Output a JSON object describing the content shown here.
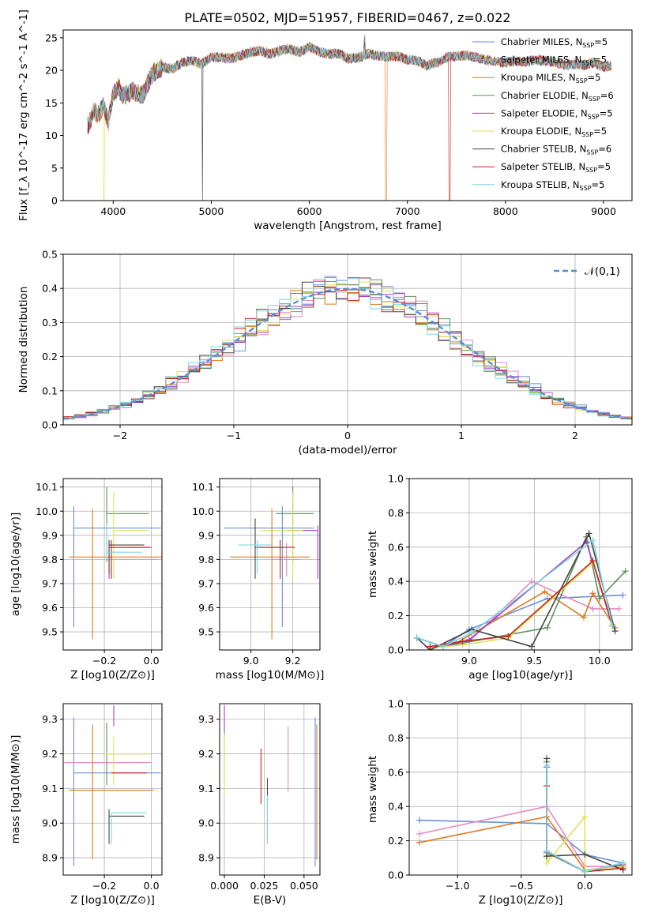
{
  "figure": {
    "title": "PLATE=0502, MJD=51957, FIBERID=0467, z=0.022"
  },
  "models": [
    {
      "name": "Chabrier MILES",
      "nssp": "5",
      "color": "#6b8fd6"
    },
    {
      "name": "Salpeter MILES",
      "nssp": "5",
      "color": "#e58bc0"
    },
    {
      "name": "Kroupa MILES",
      "nssp": "5",
      "color": "#de7a1f"
    },
    {
      "name": "Chabrier ELODIE",
      "nssp": "6",
      "color": "#5f8f5f"
    },
    {
      "name": "Salpeter ELODIE",
      "nssp": "5",
      "color": "#a43dc8"
    },
    {
      "name": "Kroupa ELODIE",
      "nssp": "5",
      "color": "#d9e35a"
    },
    {
      "name": "Chabrier STELIB",
      "nssp": "6",
      "color": "#444444"
    },
    {
      "name": "Salpeter STELIB",
      "nssp": "5",
      "color": "#c8251f"
    },
    {
      "name": "Kroupa STELIB",
      "nssp": "5",
      "color": "#7fd6df"
    }
  ],
  "chart_data": [
    {
      "id": "spectrum",
      "type": "line",
      "xlabel": "wavelength [Angstrom, rest frame]",
      "ylabel": "Flux [f_λ 10^-17 erg cm^-2 s^-1 A^-1]",
      "xlim": [
        3490,
        9290
      ],
      "ylim": [
        0,
        26.2
      ],
      "xticks": [
        4000,
        5000,
        6000,
        7000,
        8000,
        9000
      ],
      "yticks": [
        0,
        5,
        10,
        15,
        20,
        25
      ],
      "grid": false,
      "legend": "top-right",
      "spectrum_x": [
        3750,
        3800,
        3850,
        3900,
        3950,
        4000,
        4050,
        4100,
        4200,
        4300,
        4400,
        4500,
        4600,
        4700,
        4800,
        4900,
        5000,
        5100,
        5200,
        5300,
        5400,
        5500,
        5600,
        5700,
        5800,
        5900,
        6000,
        6100,
        6200,
        6300,
        6400,
        6500,
        6600,
        6700,
        6800,
        6900,
        7000,
        7100,
        7200,
        7300,
        7400,
        7500,
        7600,
        7700,
        7800,
        7900,
        8000,
        8100,
        8200,
        8300,
        8400,
        8500,
        8600,
        8700,
        8800,
        8900,
        9000,
        9100
      ],
      "spectrum_y": [
        11.5,
        13.8,
        13.2,
        14.5,
        12.0,
        16.5,
        17.5,
        16.0,
        16.8,
        16.2,
        19.5,
        20.5,
        20.2,
        21.2,
        21.5,
        21.0,
        22.0,
        22.0,
        21.8,
        22.3,
        22.8,
        23.0,
        22.5,
        23.0,
        23.3,
        22.8,
        23.6,
        22.8,
        22.5,
        22.6,
        21.8,
        22.0,
        22.5,
        22.3,
        22.0,
        22.2,
        21.6,
        21.5,
        20.8,
        21.2,
        22.0,
        22.2,
        22.3,
        22.0,
        21.6,
        21.4,
        21.2,
        21.4,
        21.3,
        21.6,
        21.5,
        21.3,
        20.8,
        21.0,
        20.8,
        21.2,
        20.5,
        20.8
      ]
    },
    {
      "id": "residual-histogram",
      "type": "line",
      "xlabel": "(data-model)/error",
      "ylabel": "Normed distribution",
      "xlim": [
        -2.5,
        2.5
      ],
      "ylim": [
        0,
        0.5
      ],
      "xticks": [
        -2,
        -1,
        0,
        1,
        2
      ],
      "yticks": [
        0.0,
        0.1,
        0.2,
        0.3,
        0.4,
        0.5
      ],
      "grid": true,
      "legend": "top-right",
      "legend_label": "𝒩(0,1)",
      "bin_width": 0.1,
      "bins_start": -2.5
    },
    {
      "id": "age-vs-metallicity",
      "type": "scatter",
      "xlabel": "Z [log10(Z/Z⊙)]",
      "ylabel": "age [log10(age/yr)]",
      "xlim": [
        -0.375,
        0.045
      ],
      "ylim": [
        9.425,
        10.135
      ],
      "xticks": [
        -0.2,
        0.0
      ],
      "yticks": [
        9.5,
        9.6,
        9.7,
        9.8,
        9.9,
        10.0,
        10.1
      ],
      "grid": true,
      "points": [
        {
          "x": -0.33,
          "xerr": [
            0.0,
            0.37
          ],
          "y": 9.93,
          "yerr": [
            0.41,
            0.09
          ]
        },
        {
          "x": -0.17,
          "xerr": [
            0.0,
            0.2
          ],
          "y": 9.8,
          "yerr": [
            0.07,
            0.07
          ]
        },
        {
          "x": -0.25,
          "xerr": [
            0.1,
            0.3
          ],
          "y": 9.81,
          "yerr": [
            0.34,
            0.2
          ]
        },
        {
          "x": -0.19,
          "xerr": [
            0.0,
            0.18
          ],
          "y": 9.99,
          "yerr": [
            0.2,
            0.11
          ]
        },
        {
          "x": -0.18,
          "xerr": [
            0.0,
            0.17
          ],
          "y": 9.85,
          "yerr": [
            0.13,
            0.03
          ]
        },
        {
          "x": -0.16,
          "xerr": [
            0.0,
            0.15
          ],
          "y": 9.92,
          "yerr": [
            0.2,
            0.16
          ]
        },
        {
          "x": -0.18,
          "xerr": [
            0.0,
            0.15
          ],
          "y": 9.86,
          "yerr": [
            0.12,
            0.02
          ]
        },
        {
          "x": -0.17,
          "xerr": [
            0.0,
            0.17
          ],
          "y": 9.85,
          "yerr": [
            0.13,
            0.03
          ]
        },
        {
          "x": -0.19,
          "xerr": [
            0.0,
            0.15
          ],
          "y": 9.83,
          "yerr": [
            0.03,
            0.12
          ]
        }
      ]
    },
    {
      "id": "age-vs-mass",
      "type": "scatter",
      "xlabel": "mass [log10(M/M⊙)]",
      "ylabel": "",
      "xlim": [
        8.85,
        9.33
      ],
      "ylim": [
        9.425,
        10.135
      ],
      "xticks": [
        9.0,
        9.2
      ],
      "yticks": [
        9.5,
        9.6,
        9.7,
        9.8,
        9.9,
        10.0,
        10.1
      ],
      "grid": true,
      "points": [
        {
          "x": 9.15,
          "xerr": [
            0.28,
            0.15
          ],
          "y": 9.93,
          "yerr": [
            0.41,
            0.09
          ]
        },
        {
          "x": 9.17,
          "xerr": [
            0.07,
            0.07
          ],
          "y": 9.8,
          "yerr": [
            0.07,
            0.07
          ]
        },
        {
          "x": 9.1,
          "xerr": [
            0.2,
            0.18
          ],
          "y": 9.81,
          "yerr": [
            0.34,
            0.2
          ]
        },
        {
          "x": 9.2,
          "xerr": [
            0.08,
            0.1
          ],
          "y": 9.99,
          "yerr": [
            0.2,
            0.11
          ]
        },
        {
          "x": 9.32,
          "xerr": [
            0.15,
            0.0
          ],
          "y": 9.92,
          "yerr": [
            0.2,
            0.02
          ]
        },
        {
          "x": 9.2,
          "xerr": [
            0.15,
            0.05
          ],
          "y": 9.92,
          "yerr": [
            0.2,
            0.16
          ]
        },
        {
          "x": 9.02,
          "xerr": [
            0.0,
            0.14
          ],
          "y": 9.85,
          "yerr": [
            0.13,
            0.12
          ]
        },
        {
          "x": 9.14,
          "xerr": [
            0.08,
            0.07
          ],
          "y": 9.85,
          "yerr": [
            0.13,
            0.03
          ]
        },
        {
          "x": 9.03,
          "xerr": [
            0.09,
            0.07
          ],
          "y": 9.86,
          "yerr": [
            0.12,
            0.02
          ]
        }
      ]
    },
    {
      "id": "mass-weight-vs-age",
      "type": "line",
      "xlabel": "age [log10(age/yr)]",
      "ylabel": "mass weight",
      "xlim": [
        8.54,
        10.25
      ],
      "ylim": [
        0.0,
        1.0
      ],
      "xticks": [
        9.0,
        9.5,
        10.0
      ],
      "yticks": [
        0.0,
        0.2,
        0.4,
        0.6,
        0.8,
        1.0
      ],
      "grid": true,
      "series": [
        {
          "x": [
            8.6,
            8.8,
            9.0,
            9.6,
            10.18
          ],
          "y": [
            0.07,
            0.02,
            0.12,
            0.3,
            0.32
          ]
        },
        {
          "x": [
            8.7,
            9.0,
            9.48,
            9.95,
            10.15
          ],
          "y": [
            0.02,
            0.05,
            0.4,
            0.24,
            0.24
          ]
        },
        {
          "x": [
            8.7,
            8.9,
            9.58,
            9.88,
            9.95,
            10.12
          ],
          "y": [
            0.01,
            0.04,
            0.34,
            0.19,
            0.33,
            0.13
          ]
        },
        {
          "x": [
            8.6,
            8.8,
            9.6,
            9.9,
            10.0,
            10.2
          ],
          "y": [
            0.07,
            0.02,
            0.13,
            0.66,
            0.3,
            0.46
          ]
        },
        {
          "x": [
            8.6,
            8.8,
            9.0,
            9.9,
            10.1
          ],
          "y": [
            0.07,
            0.02,
            0.06,
            0.63,
            0.14
          ]
        },
        {
          "x": [
            8.7,
            8.95,
            9.3,
            9.95,
            10.1
          ],
          "y": [
            0.01,
            0.03,
            0.07,
            0.51,
            0.15
          ]
        },
        {
          "x": [
            8.6,
            8.7,
            9.02,
            9.48,
            9.92,
            10.12
          ],
          "y": [
            0.07,
            0.0,
            0.12,
            0.02,
            0.68,
            0.11
          ]
        },
        {
          "x": [
            8.7,
            8.95,
            9.3,
            9.95,
            10.1
          ],
          "y": [
            0.02,
            0.05,
            0.08,
            0.52,
            0.14
          ]
        },
        {
          "x": [
            8.6,
            8.8,
            9.02,
            9.95,
            10.1
          ],
          "y": [
            0.07,
            0.02,
            0.1,
            0.64,
            0.14
          ]
        }
      ]
    },
    {
      "id": "mass-vs-metallicity",
      "type": "scatter",
      "xlabel": "Z [log10(Z/Z⊙)]",
      "ylabel": "mass [log10(M/M⊙)]",
      "xlim": [
        -0.375,
        0.045
      ],
      "ylim": [
        8.85,
        9.345
      ],
      "xticks": [
        -0.2,
        0.0
      ],
      "yticks": [
        8.9,
        9.0,
        9.1,
        9.2,
        9.3
      ],
      "grid": true,
      "points": [
        {
          "x": -0.33,
          "xerr": [
            0.0,
            0.37
          ],
          "y": 9.145,
          "yerr": [
            0.27,
            0.16
          ]
        },
        {
          "x": -0.17,
          "xerr": [
            0.2,
            0.17
          ],
          "y": 9.175,
          "yerr": [
            0.0,
            0.0
          ]
        },
        {
          "x": -0.25,
          "xerr": [
            0.1,
            0.26
          ],
          "y": 9.095,
          "yerr": [
            0.2,
            0.19
          ]
        },
        {
          "x": -0.19,
          "xerr": [
            0.0,
            0.18
          ],
          "y": 9.2,
          "yerr": [
            0.09,
            0.09
          ]
        },
        {
          "x": -0.16,
          "xerr": [
            0.0,
            0.0
          ],
          "y": 9.31,
          "yerr": [
            0.03,
            0.03
          ]
        },
        {
          "x": -0.16,
          "xerr": [
            0.04,
            0.15
          ],
          "y": 9.2,
          "yerr": [
            0.09,
            0.05
          ]
        },
        {
          "x": -0.18,
          "xerr": [
            0.0,
            0.15
          ],
          "y": 9.02,
          "yerr": [
            0.08,
            0.02
          ]
        },
        {
          "x": -0.17,
          "xerr": [
            0.0,
            0.15
          ],
          "y": 9.145,
          "yerr": [
            0.0,
            0.0
          ]
        },
        {
          "x": -0.17,
          "xerr": [
            0.0,
            0.15
          ],
          "y": 9.03,
          "yerr": [
            0.09,
            0.0
          ]
        }
      ]
    },
    {
      "id": "mass-vs-extinction",
      "type": "scatter",
      "xlabel": "E(B-V)",
      "ylabel": "",
      "xlim": [
        -0.003,
        0.06
      ],
      "ylim": [
        8.85,
        9.345
      ],
      "xticks": [
        0.0,
        0.025,
        0.05
      ],
      "yticks": [
        8.9,
        9.0,
        9.1,
        9.2,
        9.3
      ],
      "grid": true,
      "points": [
        {
          "x": 0.057,
          "y": 9.145,
          "yerr": [
            0.27,
            0.16
          ]
        },
        {
          "x": 0.04,
          "y": 9.185,
          "yerr": [
            0.095,
            0.095
          ]
        },
        {
          "x": 0.058,
          "y": 9.095,
          "yerr": [
            0.2,
            0.19
          ]
        },
        {
          "x": 0.0,
          "y": 9.2,
          "yerr": [
            0.1,
            0.06
          ]
        },
        {
          "x": 0.0,
          "y": 9.3,
          "yerr": [
            0.05,
            0.04
          ]
        },
        {
          "x": 0.0,
          "y": 9.18,
          "yerr": [
            0.1,
            0.08
          ]
        },
        {
          "x": 0.027,
          "y": 9.08,
          "yerr": [
            0.14,
            0.05
          ]
        },
        {
          "x": 0.023,
          "y": 9.135,
          "yerr": [
            0.08,
            0.08
          ]
        },
        {
          "x": 0.027,
          "y": 9.03,
          "yerr": [
            0.09,
            0.05
          ]
        }
      ]
    },
    {
      "id": "mass-weight-vs-metallicity",
      "type": "line",
      "xlabel": "Z [log10(Z/Z⊙)]",
      "ylabel": "mass weight",
      "xlim": [
        -1.38,
        0.37
      ],
      "ylim": [
        0.0,
        1.0
      ],
      "xticks": [
        -1.0,
        -0.5,
        0.0
      ],
      "yticks": [
        0.0,
        0.2,
        0.4,
        0.6,
        0.8,
        1.0
      ],
      "grid": true,
      "series": [
        {
          "x": [
            -1.3,
            -0.3,
            0.0,
            0.3
          ],
          "y": [
            0.32,
            0.3,
            0.12,
            0.07
          ]
        },
        {
          "x": [
            -1.3,
            -0.3,
            0.0,
            0.3
          ],
          "y": [
            0.24,
            0.4,
            0.05,
            0.05
          ]
        },
        {
          "x": [
            -1.3,
            -0.3,
            0.0,
            0.3
          ],
          "y": [
            0.19,
            0.34,
            0.03,
            0.05
          ]
        },
        {
          "x": [
            -0.3,
            -0.3,
            0.0,
            0.3
          ],
          "y": [
            0.66,
            0.13,
            0.02,
            0.07
          ]
        },
        {
          "x": [
            -0.3,
            -0.3,
            0.0,
            0.3
          ],
          "y": [
            0.63,
            0.14,
            0.02,
            0.06
          ]
        },
        {
          "x": [
            -0.3,
            -0.3,
            0.0,
            0.0,
            0.3
          ],
          "y": [
            0.1,
            0.07,
            0.34,
            0.03,
            0.05
          ]
        },
        {
          "x": [
            -0.3,
            -0.3,
            0.0,
            0.3
          ],
          "y": [
            0.68,
            0.11,
            0.12,
            0.03
          ]
        },
        {
          "x": [
            -0.3,
            -0.3,
            0.0,
            0.3
          ],
          "y": [
            0.52,
            0.14,
            0.02,
            0.04
          ]
        },
        {
          "x": [
            -0.3,
            -0.3,
            0.0,
            0.3
          ],
          "y": [
            0.64,
            0.14,
            0.02,
            0.07
          ]
        }
      ]
    }
  ]
}
